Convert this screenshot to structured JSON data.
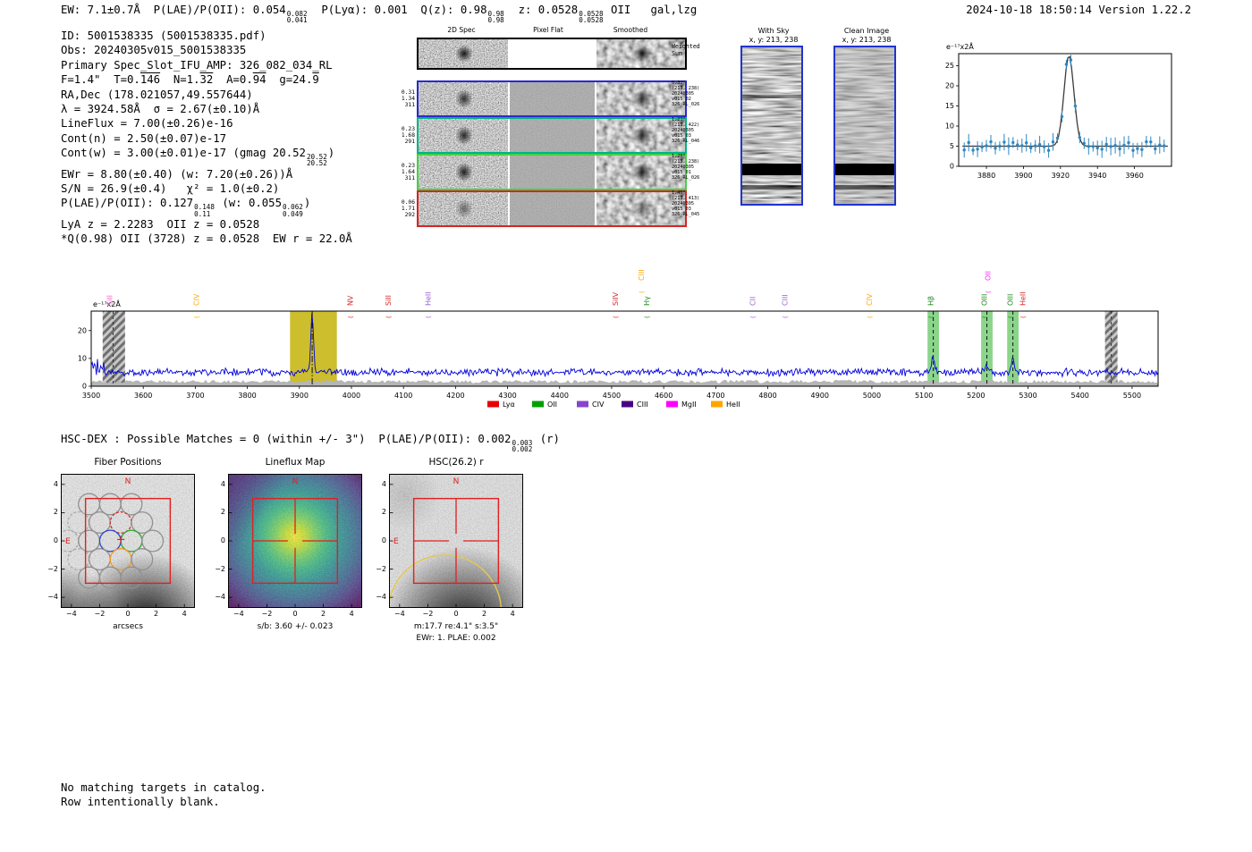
{
  "header": {
    "segments": [
      {
        "t": "EW: 7.1±0.7Å  P(LAE)/P(OII): 0.054"
      },
      {
        "frac": [
          "0.082",
          "0.041"
        ]
      },
      {
        "t": "  P(Lyα): 0.001  Q(z): 0.98"
      },
      {
        "frac": [
          "0.98",
          "0.98"
        ]
      },
      {
        "t": "  z: 0.0528"
      },
      {
        "frac": [
          "0.0528",
          "0.0528"
        ]
      },
      {
        "t": " OII   gal,lzg"
      }
    ],
    "timestamp": "2024-10-18 18:50:14  Version 1.22.2"
  },
  "info": {
    "lines": [
      [
        {
          "t": "ID: 5001538335 (5001538335.pdf)"
        }
      ],
      [
        {
          "t": "Obs: 20240305v015_5001538335"
        }
      ],
      [
        {
          "t": "Primary Spec_Slot_IFU_AMP: 326_082_034_RL"
        }
      ],
      [
        {
          "t": "F=1.4\"  T=0."
        },
        {
          "t": "146",
          "style": "ovl"
        },
        {
          "t": "  N=1."
        },
        {
          "t": "32",
          "style": "ovl"
        },
        {
          "t": "  A=0."
        },
        {
          "t": "94",
          "style": "ovl"
        },
        {
          "t": "  g=24."
        },
        {
          "t": "9",
          "style": "ovl"
        }
      ],
      [
        {
          "t": "RA,Dec (178.021057,49.557644)"
        }
      ],
      [
        {
          "t": "λ = 3924.58Å  σ = 2.67(±0.10)Å"
        }
      ],
      [
        {
          "t": "LineFlux = 7.00(±0.26)e-16"
        }
      ],
      [
        {
          "t": "Cont(n) = 2.50(±0.07)e-17"
        }
      ],
      [
        {
          "t": "Cont(w) = 3.00(±0.01)e-17 (gmag 20.52"
        },
        {
          "frac": [
            "20.52",
            "20.52"
          ]
        },
        {
          "t": ")"
        }
      ],
      [
        {
          "t": "EWr = 8.80(±0.40) (w: 7.20(±0.26))Å"
        }
      ],
      [
        {
          "t": "S/N = 26.9(±0.4)   χ² = 1.0(±0.2)"
        }
      ],
      [
        {
          "t": "P(LAE)/P(OII): 0.127"
        },
        {
          "frac": [
            "0.148",
            "0.11"
          ]
        },
        {
          "t": " (w: 0.055"
        },
        {
          "frac": [
            "0.062",
            "0.049"
          ]
        },
        {
          "t": ")"
        }
      ],
      [
        {
          "t": "LyA z = 2.2283  OII z = 0.0528"
        }
      ],
      [
        {
          "t": "*Q(0.98) OII (3728) z = 0.0528  EW r = 22.0Å"
        }
      ]
    ]
  },
  "spec2d": {
    "col_titles": [
      "2D Spec",
      "Pixel Flat",
      "Smoothed"
    ],
    "rows": [
      {
        "left": [],
        "right": [
          "Weighted",
          "Sum"
        ],
        "border": "#000000"
      },
      {
        "left": [
          "0.31",
          "1.34",
          "311"
        ],
        "right": [
          "0.32\"",
          "(213, 238)",
          "20240305",
          "v015_02",
          "326_RL_026"
        ],
        "border": "#2a2ad0"
      },
      {
        "left": [
          "0.23",
          "1.68",
          "291"
        ],
        "right": [
          "1.21\"",
          "(213, 422)",
          "20240305",
          "v015_03",
          "326_RL_046"
        ],
        "border": "#00b386"
      },
      {
        "left": [
          "0.23",
          "1.64",
          "311"
        ],
        "right": [
          "1.20\"",
          "(213, 238)",
          "20240305",
          "v015_01",
          "326_RL_026"
        ],
        "border": "#41d341"
      },
      {
        "left": [
          "0.06",
          "1.71",
          "292"
        ],
        "right": [
          "1.46\"",
          "(213, 413)",
          "20240305",
          "v015_03",
          "326_RL_045"
        ],
        "border": "#d62424"
      }
    ]
  },
  "sky": {
    "panels": [
      {
        "title": "With Sky",
        "subtitle": "x, y: 213, 238"
      },
      {
        "title": "Clean Image",
        "subtitle": "x, y: 213, 238"
      }
    ]
  },
  "hsc": {
    "segments": [
      {
        "t": "HSC-DEX : Possible Matches = 0 (within +/- 3\")  P(LAE)/P(OII): 0.002"
      },
      {
        "frac": [
          "0.003",
          "0.002"
        ]
      },
      {
        "t": " (r)"
      }
    ]
  },
  "footer": {
    "lines": [
      "No matching targets in catalog.",
      "Row intentionally blank."
    ]
  },
  "chart_data": [
    {
      "id": "emission_line_fit",
      "type": "line+scatter",
      "xlim": [
        3865,
        3980
      ],
      "ylim": [
        0,
        28
      ],
      "xticks": [
        "3880",
        "3900",
        "3920",
        "3940",
        "3960"
      ],
      "yticks": [
        "0",
        "5",
        "10",
        "15",
        "20",
        "25"
      ],
      "units_annotation": "e⁻¹⁷x2Å",
      "continuum": 5.0,
      "gaussian_fit": {
        "center": 3924.58,
        "sigma": 2.67,
        "amplitude": 22.5
      },
      "point_color": "#2e86c1",
      "fit_color": "#3a3a3a"
    },
    {
      "id": "full_spectrum",
      "type": "line",
      "xlim": [
        3500,
        5550
      ],
      "ylim": [
        0,
        27
      ],
      "xticks": [
        "3500",
        "3600",
        "3700",
        "3800",
        "3900",
        "4000",
        "4100",
        "4200",
        "4300",
        "4400",
        "4500",
        "4600",
        "4700",
        "4800",
        "4900",
        "5000",
        "5100",
        "5200",
        "5300",
        "5400",
        "5500"
      ],
      "yticks": [
        "0",
        "10",
        "20"
      ],
      "units_annotation": "e⁻¹⁷x2Å",
      "line_color": "#0000dd",
      "error_fill_color": "#b5b5b5",
      "continuum": 5.0,
      "peaks": [
        {
          "center": 3924.58,
          "sigma": 2.67,
          "amplitude": 21.5
        },
        {
          "center": 5118,
          "sigma": 2.6,
          "amplitude": 6.0
        },
        {
          "center": 5221,
          "sigma": 2.6,
          "amplitude": 2.5
        },
        {
          "center": 5271,
          "sigma": 2.6,
          "amplitude": 6.0
        }
      ],
      "selected_band": {
        "x0": 3882,
        "x1": 3972,
        "color": "#c9bb22"
      },
      "sky_bands": [
        {
          "x0": 3522,
          "x1": 3565
        },
        {
          "x0": 5448,
          "x1": 5472
        }
      ],
      "sky_dashed": [
        3542,
        5460
      ],
      "solution_bands": [
        {
          "x0": 5107,
          "x1": 5129
        },
        {
          "x0": 5210,
          "x1": 5232
        },
        {
          "x0": 5260,
          "x1": 5282
        }
      ],
      "solution_band_color": "#6ecb6e",
      "dashed_lines": [
        3924.58,
        5118,
        5221,
        5271
      ],
      "line_markers": [
        {
          "label": "SiII",
          "wavelength": 3540,
          "color": "#e864c8",
          "paren": false
        },
        {
          "label": "CIV",
          "wavelength": 3707,
          "color": "#ffa500",
          "paren": true
        },
        {
          "label": "NV",
          "wavelength": 4003,
          "color": "#d62728",
          "paren": true
        },
        {
          "label": "SiII",
          "wavelength": 4076,
          "color": "#d62728",
          "paren": true
        },
        {
          "label": "HeII",
          "wavelength": 4152,
          "color": "#9a5fd0",
          "paren": true
        },
        {
          "label": "SiIV",
          "wavelength": 4512,
          "color": "#d62728",
          "paren": true
        },
        {
          "label": "CIII",
          "wavelength": 4562,
          "color": "#ffa500",
          "row": "upper",
          "paren": true
        },
        {
          "label": "Hγ",
          "wavelength": 4572,
          "color": "#1a8a1a",
          "paren": true
        },
        {
          "label": "CII",
          "wavelength": 4776,
          "color": "#9a5fd0",
          "paren": true
        },
        {
          "label": "CIII",
          "wavelength": 4838,
          "color": "#9a5fd0",
          "paren": true
        },
        {
          "label": "CIV",
          "wavelength": 5000,
          "color": "#ffa500",
          "paren": true
        },
        {
          "label": "Hβ",
          "wavelength": 5118,
          "color": "#1a8a1a",
          "paren": true
        },
        {
          "label": "OIII",
          "wavelength": 5221,
          "color": "#1a8a1a",
          "paren": true
        },
        {
          "label": "OIII",
          "wavelength": 5271,
          "color": "#1a8a1a",
          "paren": true
        },
        {
          "label": "HeII",
          "wavelength": 5295,
          "color": "#d62728",
          "paren": true
        },
        {
          "label": "OII",
          "wavelength": 5228,
          "color": "#ff2bff",
          "row": "upper",
          "paren": true
        }
      ],
      "legend": [
        {
          "label": "Lyα",
          "color": "#e60000"
        },
        {
          "label": "OII",
          "color": "#00a000"
        },
        {
          "label": "CIV",
          "color": "#8844cc"
        },
        {
          "label": "CIII",
          "color": "#4b0082"
        },
        {
          "label": "MgII",
          "color": "#ff00ff"
        },
        {
          "label": "HeII",
          "color": "#ffa500"
        }
      ]
    },
    {
      "id": "fiber_positions",
      "type": "scatter",
      "title": "Fiber Positions",
      "xlabel": "arcsecs",
      "tick_values": [
        -4,
        -2,
        0,
        2,
        4
      ],
      "tick_labels": [
        "−4",
        "−2",
        "0",
        "2",
        "4"
      ],
      "axis_range": [
        -4.75,
        4.75
      ],
      "fiber_radius_arcsec": 0.75,
      "box_half_arcsec": 3,
      "compass": {
        "north": "N",
        "east": "E"
      },
      "center_mark": {
        "x": -0.5,
        "y": 0.1
      },
      "fibers": [
        {
          "x": -2.75,
          "y": 2.6,
          "c": "#909090",
          "dash": false
        },
        {
          "x": -1.25,
          "y": 2.6,
          "c": "#909090",
          "dash": false
        },
        {
          "x": 0.25,
          "y": 2.6,
          "c": "#909090",
          "dash": false
        },
        {
          "x": -3.5,
          "y": 1.3,
          "c": "#aaaaaa",
          "dash": true
        },
        {
          "x": -2.0,
          "y": 1.3,
          "c": "#909090",
          "dash": false
        },
        {
          "x": -0.5,
          "y": 1.3,
          "c": "#d62424",
          "dash": true
        },
        {
          "x": 1.0,
          "y": 1.3,
          "c": "#909090",
          "dash": false
        },
        {
          "x": -4.25,
          "y": 0,
          "c": "#aaaaaa",
          "dash": true
        },
        {
          "x": -2.75,
          "y": 0,
          "c": "#909090",
          "dash": false
        },
        {
          "x": -1.25,
          "y": 0,
          "c": "#2a48d0",
          "dash": false
        },
        {
          "x": 0.25,
          "y": 0,
          "c": "#28a828",
          "dash": false
        },
        {
          "x": 1.75,
          "y": 0,
          "c": "#909090",
          "dash": false
        },
        {
          "x": -3.5,
          "y": -1.3,
          "c": "#aaaaaa",
          "dash": true
        },
        {
          "x": -2.0,
          "y": -1.3,
          "c": "#909090",
          "dash": false
        },
        {
          "x": -0.5,
          "y": -1.3,
          "c": "#f09c28",
          "dash": false
        },
        {
          "x": 1.0,
          "y": -1.3,
          "c": "#909090",
          "dash": false
        },
        {
          "x": -2.75,
          "y": -2.6,
          "c": "#909090",
          "dash": false
        },
        {
          "x": -1.25,
          "y": -2.6,
          "c": "#909090",
          "dash": false
        },
        {
          "x": 0.25,
          "y": -2.6,
          "c": "#909090",
          "dash": false
        }
      ]
    },
    {
      "id": "lineflux_map",
      "type": "heatmap",
      "title": "Lineflux Map",
      "caption": "s/b: 3.60 +/- 0.023",
      "tick_values": [
        -4,
        -2,
        0,
        2,
        4
      ],
      "tick_labels": [
        "−4",
        "−2",
        "0",
        "2",
        "4"
      ],
      "axis_range": [
        -4.75,
        4.75
      ],
      "box_half_arcsec": 3,
      "compass": {
        "north": "N"
      }
    },
    {
      "id": "hsc_cutout",
      "type": "image",
      "title": "HSC(26.2) r",
      "caption": "m:17.7  re:4.1\"  s:3.5\"",
      "caption2": "EWr: 1. PLAE: 0.002",
      "tick_values": [
        -4,
        -2,
        0,
        2,
        4
      ],
      "tick_labels": [
        "−4",
        "−2",
        "0",
        "2",
        "4"
      ],
      "axis_range": [
        -4.75,
        4.75
      ],
      "box_half_arcsec": 3,
      "compass": {
        "north": "N",
        "east": "E"
      },
      "aperture": {
        "cx": -0.8,
        "cy": -5.0,
        "r": 4.0,
        "color": "#e6c84b"
      }
    }
  ]
}
